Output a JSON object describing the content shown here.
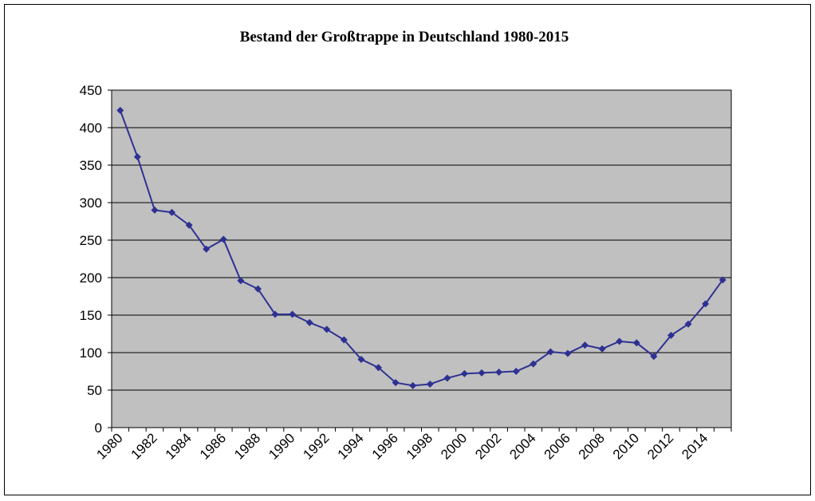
{
  "chart_data": {
    "type": "line",
    "title": "Bestand der Großtrappe in Deutschland 1980-2015",
    "categories": [
      "1980",
      null,
      "1982",
      null,
      "1984",
      null,
      "1986",
      null,
      "1988",
      null,
      "1990",
      null,
      "1992",
      null,
      "1994",
      null,
      "1996",
      null,
      "1998",
      null,
      "2000",
      null,
      "2002",
      null,
      "2004",
      null,
      "2006",
      null,
      "2008",
      null,
      "2010",
      null,
      "2012",
      null,
      "2014",
      null
    ],
    "series": [
      {
        "color": "#2e3192",
        "values": [
          423,
          361,
          290,
          287,
          270,
          238,
          251,
          196,
          185,
          151,
          151,
          140,
          131,
          117,
          91,
          80,
          60,
          56,
          58,
          66,
          72,
          73,
          74,
          75,
          85,
          101,
          99,
          110,
          105,
          115,
          113,
          95,
          123,
          138,
          165,
          197
        ]
      }
    ],
    "ylim": [
      0,
      450
    ],
    "yticks": [
      0,
      50,
      100,
      150,
      200,
      250,
      300,
      350,
      400,
      450
    ],
    "grid": true,
    "plot_background": "#c0c0c0"
  }
}
